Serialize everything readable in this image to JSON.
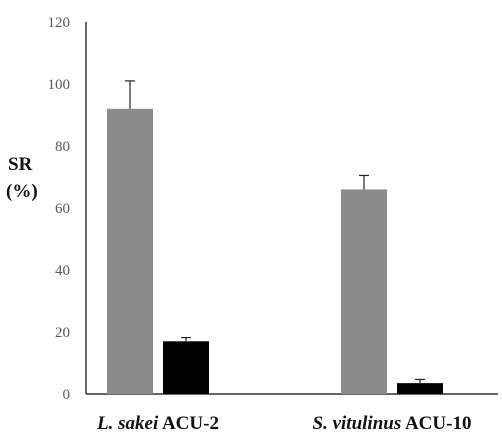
{
  "chart_data": {
    "type": "bar",
    "title": "",
    "xlabel": "",
    "ylabel_lines": [
      "SR",
      "(%)"
    ],
    "ylim": [
      0,
      120
    ],
    "yticks": [
      0,
      20,
      40,
      60,
      80,
      100,
      120
    ],
    "grid": false,
    "legend": "none",
    "categories": [
      {
        "italic": "L. sakei",
        "plain": " ACU-2"
      },
      {
        "italic": "S. vitulinus",
        "plain": " ACU-10"
      }
    ],
    "series": [
      {
        "values": [
          92,
          66
        ],
        "errors": [
          9,
          4.5
        ],
        "color": "#8c8c8c"
      },
      {
        "values": [
          17,
          3.5
        ],
        "errors": [
          1.2,
          1.2
        ],
        "color": "#000000"
      }
    ]
  }
}
